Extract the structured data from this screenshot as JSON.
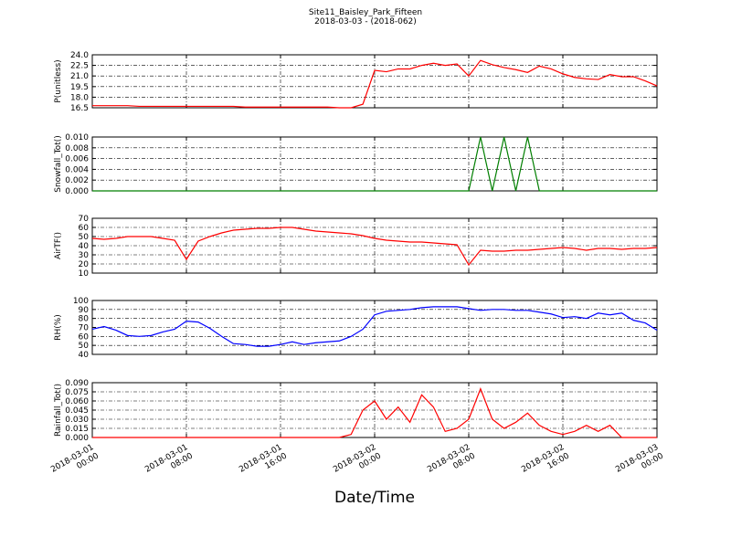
{
  "title": "Site11_Baisley_Park_Fifteen",
  "subtitle": "2018-03-03 - (2018-062)",
  "x_label": "Date/Time",
  "xlim": [
    "2018-03-01 00:00",
    "2018-03-03 00:00"
  ],
  "xticks": [
    "2018-03-01 00:00",
    "2018-03-01 08:00",
    "2018-03-01 16:00",
    "2018-03-02 00:00",
    "2018-03-02 08:00",
    "2018-03-02 16:00",
    "2018-03-03 00:00"
  ],
  "x": [
    "2018-03-01 00:00",
    "2018-03-01 01:00",
    "2018-03-01 02:00",
    "2018-03-01 03:00",
    "2018-03-01 04:00",
    "2018-03-01 05:00",
    "2018-03-01 06:00",
    "2018-03-01 07:00",
    "2018-03-01 08:00",
    "2018-03-01 09:00",
    "2018-03-01 10:00",
    "2018-03-01 11:00",
    "2018-03-01 12:00",
    "2018-03-01 13:00",
    "2018-03-01 14:00",
    "2018-03-01 15:00",
    "2018-03-01 16:00",
    "2018-03-01 17:00",
    "2018-03-01 18:00",
    "2018-03-01 19:00",
    "2018-03-01 20:00",
    "2018-03-01 21:00",
    "2018-03-01 22:00",
    "2018-03-01 23:00",
    "2018-03-02 00:00",
    "2018-03-02 01:00",
    "2018-03-02 02:00",
    "2018-03-02 03:00",
    "2018-03-02 04:00",
    "2018-03-02 05:00",
    "2018-03-02 06:00",
    "2018-03-02 07:00",
    "2018-03-02 08:00",
    "2018-03-02 09:00",
    "2018-03-02 10:00",
    "2018-03-02 11:00",
    "2018-03-02 12:00",
    "2018-03-02 13:00",
    "2018-03-02 14:00",
    "2018-03-02 15:00",
    "2018-03-02 16:00",
    "2018-03-02 17:00",
    "2018-03-02 18:00",
    "2018-03-02 19:00",
    "2018-03-02 20:00",
    "2018-03-02 21:00",
    "2018-03-02 22:00",
    "2018-03-02 23:00",
    "2018-03-03 00:00"
  ],
  "chart_data": [
    {
      "type": "line",
      "y_label": "P(unitless)",
      "grid": true,
      "ylim": [
        16.5,
        24.0
      ],
      "yticks": [
        16.5,
        {
          "value": 18,
          "label": "18.0"
        },
        19.5,
        {
          "value": 21,
          "label": "21.0"
        },
        22.5,
        {
          "value": 24,
          "label": "24.0"
        }
      ],
      "series": [
        {
          "color": "#ff0000",
          "values": [
            16.8,
            16.8,
            16.8,
            16.8,
            16.7,
            16.7,
            16.7,
            16.7,
            16.7,
            16.7,
            16.7,
            16.7,
            16.7,
            16.6,
            16.6,
            16.6,
            16.6,
            16.6,
            16.6,
            16.6,
            16.6,
            16.5,
            16.5,
            17.0,
            21.8,
            21.6,
            22.0,
            22.0,
            22.5,
            22.8,
            22.5,
            22.7,
            21.0,
            23.2,
            22.6,
            22.2,
            21.9,
            21.5,
            22.4,
            22.0,
            21.3,
            20.8,
            20.6,
            20.5,
            21.2,
            20.9,
            20.9,
            20.3,
            19.6
          ]
        }
      ]
    },
    {
      "type": "line",
      "y_label": "Snowfall_Tot()",
      "grid": true,
      "ylim": [
        0,
        0.01
      ],
      "yticks": [
        {
          "value": 0,
          "label": "0.000"
        },
        {
          "value": 0.002,
          "label": "0.002"
        },
        {
          "value": 0.004,
          "label": "0.004"
        },
        {
          "value": 0.006,
          "label": "0.006"
        },
        {
          "value": 0.008,
          "label": "0.008"
        },
        {
          "value": 0.01,
          "label": "0.010"
        }
      ],
      "series": [
        {
          "color": "#007f00",
          "values": [
            0,
            0,
            0,
            0,
            0,
            0,
            0,
            0,
            0,
            0,
            0,
            0,
            0,
            0,
            0,
            0,
            0,
            0,
            0,
            0,
            0,
            0,
            0,
            0,
            0,
            0,
            0,
            0,
            0,
            0,
            0,
            0,
            0,
            0.01,
            0,
            0.01,
            0,
            0.01,
            0,
            0,
            0,
            0,
            0,
            0,
            0,
            0,
            0,
            0,
            0
          ]
        }
      ]
    },
    {
      "type": "line",
      "y_label": "AirTF()",
      "grid": true,
      "ylim": [
        10,
        70
      ],
      "yticks": [
        10,
        20,
        30,
        40,
        50,
        60,
        70
      ],
      "series": [
        {
          "color": "#ff0000",
          "values": [
            48,
            47,
            48,
            50,
            50,
            50,
            48,
            46,
            25,
            45,
            50,
            54,
            57,
            58,
            59,
            59,
            60,
            60,
            58,
            56,
            55,
            54,
            53,
            51,
            48,
            46,
            45,
            44,
            44,
            43,
            42,
            41,
            19,
            35,
            34,
            34,
            35,
            35,
            36,
            37,
            38,
            37,
            35,
            37,
            37,
            36,
            37,
            37,
            38
          ]
        }
      ]
    },
    {
      "type": "line",
      "y_label": "RH(%)",
      "grid": true,
      "ylim": [
        40,
        100
      ],
      "yticks": [
        40,
        50,
        60,
        70,
        80,
        90,
        100
      ],
      "series": [
        {
          "color": "#0000ff",
          "values": [
            68,
            71,
            67,
            61,
            60,
            61,
            65,
            68,
            77,
            76,
            69,
            60,
            52,
            51,
            49,
            49,
            51,
            54,
            51,
            53,
            54,
            55,
            60,
            68,
            84,
            88,
            89,
            90,
            92,
            93,
            93,
            93,
            91,
            89,
            90,
            90,
            89,
            89,
            87,
            85,
            81,
            82,
            80,
            86,
            84,
            86,
            78,
            75,
            67
          ]
        }
      ]
    },
    {
      "type": "line",
      "y_label": "Rainfall_Tot()",
      "grid": true,
      "ylim": [
        0,
        0.09
      ],
      "yticks": [
        {
          "value": 0,
          "label": "0.000"
        },
        {
          "value": 0.015,
          "label": "0.015"
        },
        {
          "value": 0.03,
          "label": "0.030"
        },
        {
          "value": 0.045,
          "label": "0.045"
        },
        {
          "value": 0.06,
          "label": "0.060"
        },
        {
          "value": 0.075,
          "label": "0.075"
        },
        {
          "value": 0.09,
          "label": "0.090"
        }
      ],
      "series": [
        {
          "color": "#ff0000",
          "values": [
            0,
            0,
            0,
            0,
            0,
            0,
            0,
            0,
            0,
            0,
            0,
            0,
            0,
            0,
            0,
            0,
            0,
            0,
            0,
            0,
            0,
            0,
            0.005,
            0.045,
            0.06,
            0.03,
            0.05,
            0.025,
            0.07,
            0.05,
            0.01,
            0.015,
            0.03,
            0.08,
            0.03,
            0.015,
            0.025,
            0.04,
            0.02,
            0.01,
            0.005,
            0.01,
            0.02,
            0.01,
            0.02,
            0,
            0,
            0,
            0
          ]
        }
      ]
    }
  ]
}
